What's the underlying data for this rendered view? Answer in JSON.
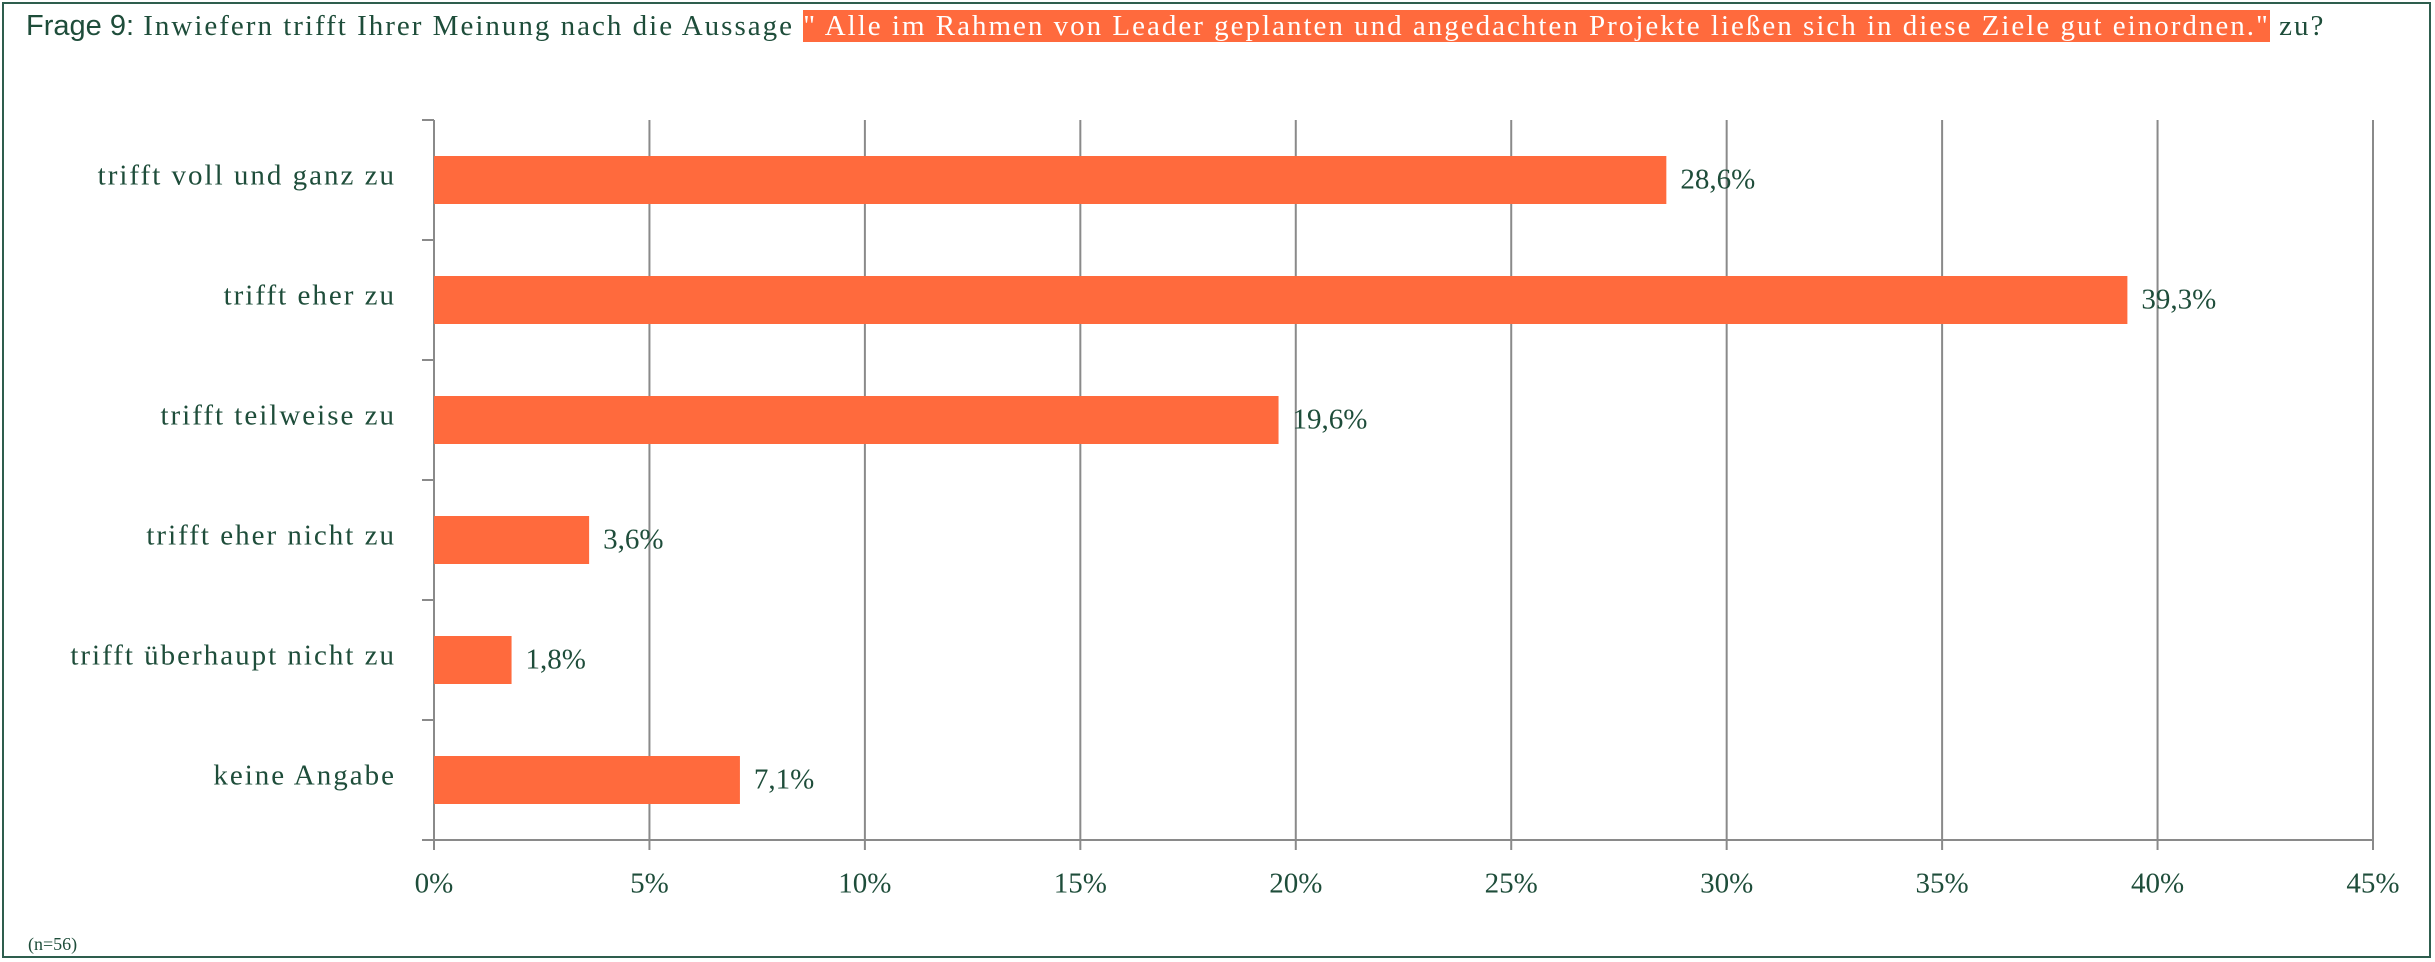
{
  "chart_data": {
    "type": "barh",
    "title_prefix": "Frage 9:",
    "title": "Inwiefern trifft Ihrer Meinung nach die Aussage",
    "title_highlight": "\" Alle im Rahmen von Leader geplanten und angedachten Projekte ließen sich in diese Ziele gut einordnen.\"",
    "title_suffix": "zu?",
    "note": "(n=56)",
    "categories": [
      "trifft voll und ganz zu",
      "trifft eher zu",
      "trifft teilweise zu",
      "trifft eher nicht zu",
      "trifft überhaupt nicht zu",
      "keine Angabe"
    ],
    "values": [
      28.6,
      39.3,
      19.6,
      3.6,
      1.8,
      7.1
    ],
    "value_labels": [
      "28,6%",
      "39,3%",
      "19,6%",
      "3,6%",
      "1,8%",
      "7,1%"
    ],
    "color": "#ff6a3d",
    "xlim": [
      0,
      45
    ],
    "xticks": [
      {
        "value": 0,
        "label": "0%"
      },
      {
        "value": 5,
        "label": "5%"
      },
      {
        "value": 10,
        "label": "10%"
      },
      {
        "value": 15,
        "label": "15%"
      },
      {
        "value": 20,
        "label": "20%"
      },
      {
        "value": 25,
        "label": "25%"
      },
      {
        "value": 30,
        "label": "30%"
      },
      {
        "value": 35,
        "label": "35%"
      },
      {
        "value": 40,
        "label": "40%"
      },
      {
        "value": 45,
        "label": "45%"
      }
    ],
    "grid": true
  }
}
